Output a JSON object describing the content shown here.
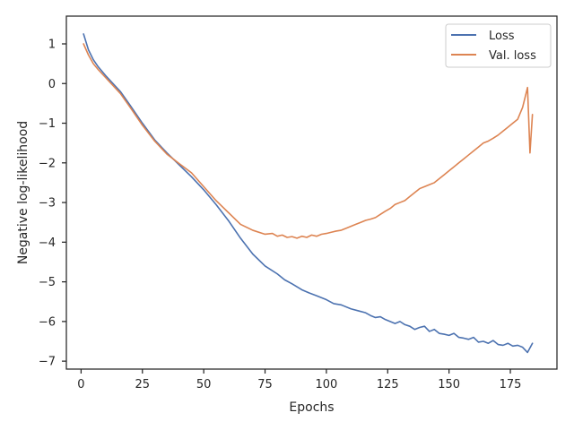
{
  "chart_data": {
    "type": "line",
    "title": "",
    "xlabel": "Epochs",
    "ylabel": "Negative log-likelihood",
    "xlim": [
      -6,
      194
    ],
    "ylim": [
      -7.2,
      1.7
    ],
    "xticks": [
      0,
      25,
      50,
      75,
      100,
      125,
      150,
      175
    ],
    "yticks": [
      1,
      0,
      -1,
      -2,
      -3,
      -4,
      -5,
      -6,
      -7
    ],
    "xtick_labels": [
      "0",
      "25",
      "50",
      "75",
      "100",
      "125",
      "150",
      "175"
    ],
    "ytick_labels": [
      "1",
      "0",
      "−1",
      "−2",
      "−3",
      "−4",
      "−5",
      "−6",
      "−7"
    ],
    "grid": false,
    "legend_position": "top-right",
    "series": [
      {
        "name": "Loss",
        "color": "#4c72b0",
        "x": [
          1,
          3,
          5,
          7,
          10,
          13,
          16,
          20,
          25,
          30,
          35,
          40,
          45,
          50,
          55,
          60,
          65,
          70,
          75,
          80,
          83,
          86,
          90,
          93,
          96,
          100,
          103,
          106,
          110,
          113,
          116,
          118,
          120,
          122,
          124,
          126,
          128,
          130,
          132,
          134,
          136,
          138,
          140,
          142,
          144,
          146,
          148,
          150,
          152,
          154,
          156,
          158,
          160,
          162,
          164,
          166,
          168,
          170,
          172,
          174,
          176,
          178,
          180,
          182,
          184
        ],
        "y": [
          1.25,
          0.85,
          0.6,
          0.42,
          0.2,
          0.0,
          -0.2,
          -0.55,
          -1.0,
          -1.42,
          -1.75,
          -2.05,
          -2.35,
          -2.68,
          -3.05,
          -3.45,
          -3.9,
          -4.3,
          -4.6,
          -4.8,
          -4.95,
          -5.05,
          -5.2,
          -5.28,
          -5.35,
          -5.45,
          -5.55,
          -5.58,
          -5.68,
          -5.73,
          -5.78,
          -5.85,
          -5.9,
          -5.88,
          -5.95,
          -6.0,
          -6.05,
          -6.0,
          -6.08,
          -6.12,
          -6.2,
          -6.15,
          -6.12,
          -6.25,
          -6.2,
          -6.3,
          -6.32,
          -6.35,
          -6.3,
          -6.4,
          -6.42,
          -6.45,
          -6.4,
          -6.52,
          -6.5,
          -6.55,
          -6.48,
          -6.58,
          -6.6,
          -6.55,
          -6.62,
          -6.6,
          -6.65,
          -6.78,
          -6.55
        ]
      },
      {
        "name": "Val. loss",
        "color": "#dd8452",
        "x": [
          1,
          3,
          5,
          7,
          10,
          13,
          16,
          20,
          25,
          30,
          35,
          40,
          45,
          50,
          55,
          60,
          65,
          70,
          75,
          78,
          80,
          82,
          84,
          86,
          88,
          90,
          92,
          94,
          96,
          98,
          100,
          102,
          104,
          106,
          108,
          110,
          112,
          114,
          116,
          118,
          120,
          122,
          124,
          126,
          128,
          130,
          132,
          134,
          136,
          138,
          140,
          142,
          144,
          146,
          148,
          150,
          152,
          154,
          156,
          158,
          160,
          162,
          164,
          166,
          168,
          170,
          172,
          174,
          176,
          178,
          180,
          182,
          183,
          184
        ],
        "y": [
          1.0,
          0.72,
          0.5,
          0.35,
          0.15,
          -0.05,
          -0.25,
          -0.6,
          -1.05,
          -1.45,
          -1.78,
          -2.02,
          -2.25,
          -2.6,
          -2.95,
          -3.25,
          -3.55,
          -3.7,
          -3.8,
          -3.78,
          -3.85,
          -3.82,
          -3.88,
          -3.86,
          -3.9,
          -3.85,
          -3.88,
          -3.82,
          -3.85,
          -3.8,
          -3.78,
          -3.75,
          -3.72,
          -3.7,
          -3.65,
          -3.6,
          -3.55,
          -3.5,
          -3.45,
          -3.42,
          -3.38,
          -3.3,
          -3.22,
          -3.15,
          -3.05,
          -3.0,
          -2.95,
          -2.85,
          -2.75,
          -2.65,
          -2.6,
          -2.55,
          -2.5,
          -2.4,
          -2.3,
          -2.2,
          -2.1,
          -2.0,
          -1.9,
          -1.8,
          -1.7,
          -1.6,
          -1.5,
          -1.45,
          -1.38,
          -1.3,
          -1.2,
          -1.1,
          -1.0,
          -0.9,
          -0.6,
          -0.1,
          -1.75,
          -0.78
        ]
      }
    ]
  }
}
